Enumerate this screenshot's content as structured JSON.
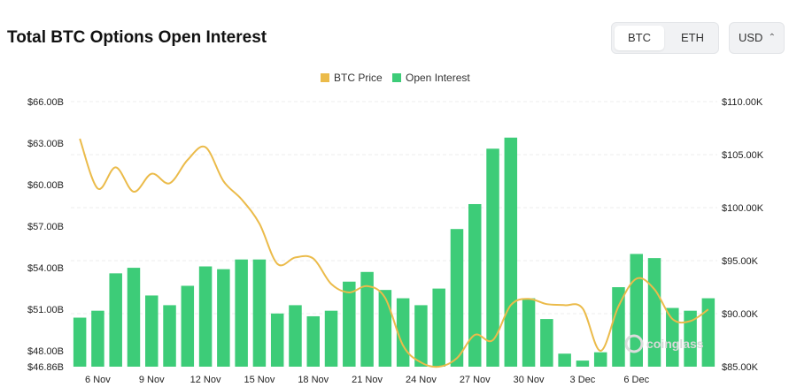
{
  "header": {
    "title": "Total BTC Options Open Interest",
    "asset_options": [
      "BTC",
      "ETH"
    ],
    "selected_asset": "BTC",
    "currency": "USD"
  },
  "colors": {
    "open_interest": "#3dcc78",
    "btc_price": "#ebbb4a",
    "gridline": "#eeeeee"
  },
  "watermark": "coinglass",
  "chart_data": {
    "type": "bar",
    "title": "Total BTC Options Open Interest",
    "series": [
      {
        "name": "Open Interest",
        "type": "bar",
        "axis": "left",
        "values": [
          50.4,
          50.9,
          53.6,
          54.0,
          52.0,
          51.3,
          52.7,
          54.1,
          53.9,
          54.6,
          54.6,
          50.7,
          51.3,
          50.5,
          50.9,
          53.0,
          53.7,
          52.4,
          51.8,
          51.3,
          52.5,
          56.8,
          58.6,
          62.6,
          63.4,
          51.8,
          50.3,
          47.8,
          47.3,
          47.9,
          52.6,
          55.0,
          54.7,
          51.1,
          50.9,
          51.8
        ]
      },
      {
        "name": "BTC Price",
        "type": "line",
        "axis": "right",
        "values": [
          106.5,
          101.8,
          103.8,
          101.5,
          103.2,
          102.3,
          104.5,
          105.7,
          102.5,
          100.8,
          98.5,
          94.7,
          95.3,
          95.2,
          92.8,
          92.0,
          92.6,
          91.5,
          87.0,
          85.4,
          85.0,
          85.8,
          88.0,
          87.5,
          90.8,
          91.4,
          90.9,
          90.8,
          90.5,
          86.5,
          90.7,
          93.3,
          92.3,
          89.5,
          89.3,
          90.4
        ]
      }
    ],
    "x_ticks": [
      "6 Nov",
      "9 Nov",
      "12 Nov",
      "15 Nov",
      "18 Nov",
      "21 Nov",
      "24 Nov",
      "27 Nov",
      "30 Nov",
      "3 Dec",
      "6 Dec"
    ],
    "x_tick_every": 3,
    "x_tick_first_index": 1,
    "y_left": {
      "ticks": [
        66,
        63,
        60,
        57,
        54,
        51,
        48,
        46.86
      ],
      "tick_labels": [
        "$66.00B",
        "$63.00B",
        "$60.00B",
        "$57.00B",
        "$54.00B",
        "$51.00B",
        "$48.00B",
        "$46.86B"
      ],
      "min": 46.86,
      "max": 66
    },
    "y_right": {
      "ticks": [
        110,
        105,
        100,
        95,
        90,
        85
      ],
      "tick_labels": [
        "$110.00K",
        "$105.00K",
        "$100.00K",
        "$95.00K",
        "$90.00K",
        "$85.00K"
      ],
      "min": 85,
      "max": 110
    },
    "legend": [
      "BTC Price",
      "Open Interest"
    ],
    "legend_position": "top-center",
    "grid": true
  }
}
